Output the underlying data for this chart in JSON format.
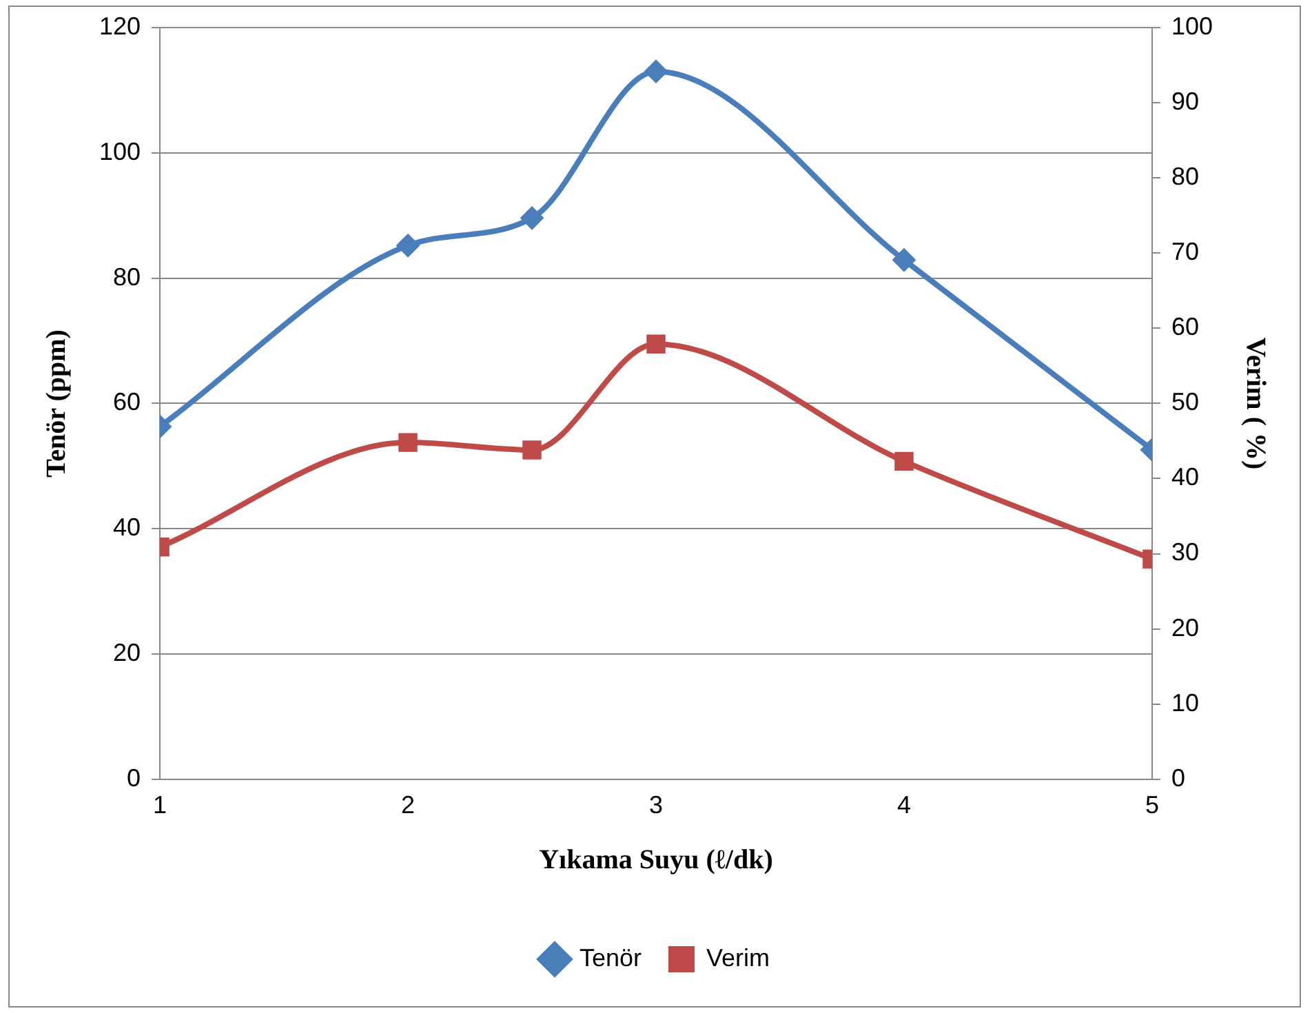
{
  "chart_data": {
    "type": "line",
    "xlabel": "Yıkama Suyu (ℓ/dk)",
    "ylabel": "Tenör (ppm)",
    "y2label": "Verim ( %)",
    "x": [
      1,
      2,
      2.5,
      3,
      4,
      5
    ],
    "xlim": [
      1,
      5
    ],
    "xticks": [
      1,
      2,
      3,
      4,
      5
    ],
    "ylim": [
      0,
      120
    ],
    "yticks": [
      0,
      20,
      40,
      60,
      80,
      100,
      120
    ],
    "y2lim": [
      0,
      100
    ],
    "y2ticks": [
      0,
      10,
      20,
      30,
      40,
      50,
      60,
      70,
      80,
      90,
      100
    ],
    "grid": "y",
    "legend": "bottom",
    "series": [
      {
        "name": "Tenör",
        "color": "#4a7ebb",
        "marker": "diamond",
        "values": [
          56.3,
          85.2,
          89.6,
          113,
          82.9,
          52.6
        ]
      },
      {
        "name": "Verim",
        "color": "#be4b48",
        "marker": "square",
        "axis": "y2",
        "values": [
          30.9,
          44.8,
          43.8,
          57.9,
          42.3,
          29.3
        ]
      }
    ]
  }
}
